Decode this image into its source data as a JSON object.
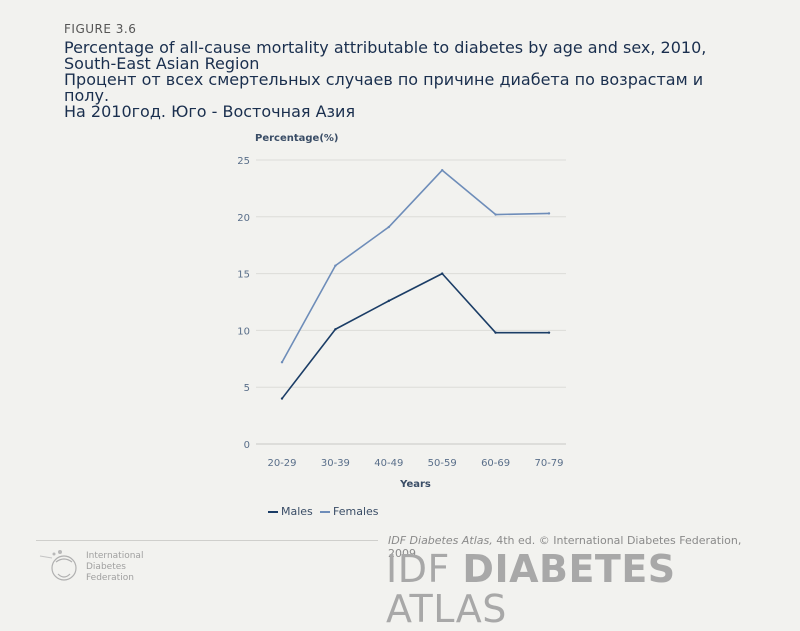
{
  "header": {
    "figure_label": "FIGURE 3.6",
    "title_lines": [
      "Percentage of all-cause mortality attributable to diabetes by age and sex, 2010,",
      "South-East Asian Region",
      "Процент от всех смертельных случаев по причине диабета по возрастам и",
      "полу.",
      "На 2010год. Юго - Восточная Азия"
    ]
  },
  "chart_data": {
    "type": "line",
    "title": "",
    "xlabel": "Years",
    "ylabel": "Percentage(%)",
    "categories": [
      "20-29",
      "30-39",
      "40-49",
      "50-59",
      "60-69",
      "70-79"
    ],
    "ylim": [
      0,
      25
    ],
    "yticks": [
      0,
      5,
      10,
      15,
      20,
      25
    ],
    "grid": true,
    "legend_position": "bottom-left",
    "series": [
      {
        "name": "Males",
        "color": "#1b3d66",
        "values": [
          4.0,
          10.1,
          12.6,
          15.0,
          9.8,
          9.8
        ]
      },
      {
        "name": "Females",
        "color": "#6e8db9",
        "values": [
          7.2,
          15.7,
          19.1,
          24.1,
          20.2,
          20.3
        ]
      }
    ]
  },
  "footer": {
    "credit_italic": "IDF Diabetes Atlas,",
    "credit_rest": " 4th ed.  © International Diabetes Federation, 2009",
    "brand_light_1": "IDF ",
    "brand_bold": "DIABETES",
    "brand_light_2": " ATLAS",
    "org_lines": [
      "International",
      "Diabetes",
      "Federation"
    ]
  }
}
